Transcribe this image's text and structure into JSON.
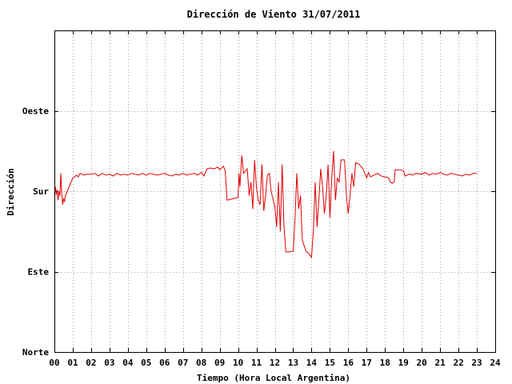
{
  "chart_data": {
    "type": "line",
    "title": "Dirección de Viento 31/07/2011",
    "xlabel": "Tiempo (Hora Local Argentina)",
    "ylabel": "Dirección",
    "xlim": [
      0,
      24
    ],
    "ylim": [
      0,
      360
    ],
    "grid": true,
    "x_ticks": [
      "00",
      "01",
      "02",
      "03",
      "04",
      "05",
      "06",
      "07",
      "08",
      "09",
      "10",
      "11",
      "12",
      "13",
      "14",
      "15",
      "16",
      "17",
      "18",
      "19",
      "20",
      "21",
      "22",
      "23",
      "24"
    ],
    "y_ticks": [
      {
        "value": 0,
        "label": "Norte"
      },
      {
        "value": 90,
        "label": "Este"
      },
      {
        "value": 180,
        "label": "Sur"
      },
      {
        "value": 270,
        "label": "Oeste"
      }
    ],
    "series": [
      {
        "color": "#e00000",
        "points": [
          [
            0.0,
            176
          ],
          [
            0.05,
            185
          ],
          [
            0.1,
            176
          ],
          [
            0.15,
            182
          ],
          [
            0.2,
            170
          ],
          [
            0.25,
            180
          ],
          [
            0.3,
            175
          ],
          [
            0.35,
            200
          ],
          [
            0.4,
            178
          ],
          [
            0.45,
            165
          ],
          [
            0.5,
            172
          ],
          [
            0.55,
            168
          ],
          [
            0.6,
            175
          ],
          [
            0.7,
            180
          ],
          [
            0.8,
            185
          ],
          [
            0.9,
            190
          ],
          [
            1.0,
            195
          ],
          [
            1.1,
            196
          ],
          [
            1.2,
            198
          ],
          [
            1.3,
            196
          ],
          [
            1.4,
            200
          ],
          [
            1.5,
            199
          ],
          [
            1.6,
            198
          ],
          [
            1.8,
            199
          ],
          [
            2.0,
            199
          ],
          [
            2.2,
            200
          ],
          [
            2.4,
            197
          ],
          [
            2.6,
            200
          ],
          [
            2.8,
            198
          ],
          [
            3.0,
            199
          ],
          [
            3.2,
            197
          ],
          [
            3.4,
            200
          ],
          [
            3.6,
            198
          ],
          [
            3.8,
            199
          ],
          [
            4.0,
            198
          ],
          [
            4.2,
            200
          ],
          [
            4.4,
            199
          ],
          [
            4.6,
            198
          ],
          [
            4.8,
            200
          ],
          [
            5.0,
            198
          ],
          [
            5.2,
            200
          ],
          [
            5.4,
            199
          ],
          [
            5.6,
            198
          ],
          [
            5.8,
            199
          ],
          [
            6.0,
            200
          ],
          [
            6.2,
            198
          ],
          [
            6.4,
            197
          ],
          [
            6.6,
            199
          ],
          [
            6.8,
            198
          ],
          [
            7.0,
            200
          ],
          [
            7.2,
            198
          ],
          [
            7.4,
            199
          ],
          [
            7.6,
            200
          ],
          [
            7.8,
            198
          ],
          [
            8.0,
            201
          ],
          [
            8.15,
            197
          ],
          [
            8.3,
            205
          ],
          [
            8.5,
            206
          ],
          [
            8.7,
            205
          ],
          [
            8.9,
            207
          ],
          [
            9.0,
            204
          ],
          [
            9.2,
            208
          ],
          [
            9.3,
            203
          ],
          [
            9.4,
            170
          ],
          [
            9.6,
            171
          ],
          [
            9.8,
            172
          ],
          [
            10.0,
            173
          ],
          [
            10.05,
            200
          ],
          [
            10.1,
            185
          ],
          [
            10.2,
            220
          ],
          [
            10.3,
            200
          ],
          [
            10.5,
            205
          ],
          [
            10.6,
            175
          ],
          [
            10.7,
            190
          ],
          [
            10.8,
            160
          ],
          [
            10.9,
            215
          ],
          [
            11.0,
            185
          ],
          [
            11.1,
            170
          ],
          [
            11.2,
            165
          ],
          [
            11.3,
            210
          ],
          [
            11.4,
            158
          ],
          [
            11.5,
            175
          ],
          [
            11.6,
            198
          ],
          [
            11.7,
            200
          ],
          [
            11.8,
            180
          ],
          [
            12.0,
            163
          ],
          [
            12.1,
            140
          ],
          [
            12.2,
            190
          ],
          [
            12.3,
            135
          ],
          [
            12.4,
            210
          ],
          [
            12.5,
            140
          ],
          [
            12.6,
            112
          ],
          [
            12.8,
            112
          ],
          [
            13.0,
            113
          ],
          [
            13.1,
            150
          ],
          [
            13.2,
            200
          ],
          [
            13.3,
            160
          ],
          [
            13.4,
            175
          ],
          [
            13.5,
            125
          ],
          [
            13.7,
            113
          ],
          [
            13.9,
            109
          ],
          [
            14.0,
            106
          ],
          [
            14.1,
            135
          ],
          [
            14.2,
            190
          ],
          [
            14.3,
            140
          ],
          [
            14.4,
            170
          ],
          [
            14.5,
            205
          ],
          [
            14.6,
            185
          ],
          [
            14.7,
            155
          ],
          [
            14.8,
            175
          ],
          [
            14.9,
            210
          ],
          [
            15.0,
            150
          ],
          [
            15.1,
            195
          ],
          [
            15.2,
            225
          ],
          [
            15.3,
            170
          ],
          [
            15.4,
            195
          ],
          [
            15.5,
            190
          ],
          [
            15.6,
            215
          ],
          [
            15.8,
            215
          ],
          [
            15.9,
            175
          ],
          [
            16.0,
            155
          ],
          [
            16.1,
            175
          ],
          [
            16.2,
            200
          ],
          [
            16.3,
            185
          ],
          [
            16.4,
            212
          ],
          [
            16.6,
            210
          ],
          [
            16.8,
            205
          ],
          [
            17.0,
            195
          ],
          [
            17.1,
            201
          ],
          [
            17.2,
            196
          ],
          [
            17.4,
            198
          ],
          [
            17.6,
            200
          ],
          [
            17.8,
            197
          ],
          [
            18.0,
            196
          ],
          [
            18.2,
            195
          ],
          [
            18.3,
            190
          ],
          [
            18.4,
            189
          ],
          [
            18.5,
            190
          ],
          [
            18.55,
            204
          ],
          [
            18.8,
            204
          ],
          [
            19.0,
            203
          ],
          [
            19.1,
            197
          ],
          [
            19.3,
            199
          ],
          [
            19.5,
            198
          ],
          [
            19.7,
            200
          ],
          [
            20.0,
            199
          ],
          [
            20.2,
            201
          ],
          [
            20.4,
            198
          ],
          [
            20.6,
            200
          ],
          [
            20.8,
            199
          ],
          [
            21.0,
            201
          ],
          [
            21.2,
            199
          ],
          [
            21.4,
            198
          ],
          [
            21.6,
            200
          ],
          [
            21.8,
            199
          ],
          [
            22.0,
            198
          ],
          [
            22.2,
            197
          ],
          [
            22.4,
            199
          ],
          [
            22.6,
            198
          ],
          [
            22.8,
            200
          ],
          [
            23.0,
            200
          ]
        ]
      }
    ]
  }
}
